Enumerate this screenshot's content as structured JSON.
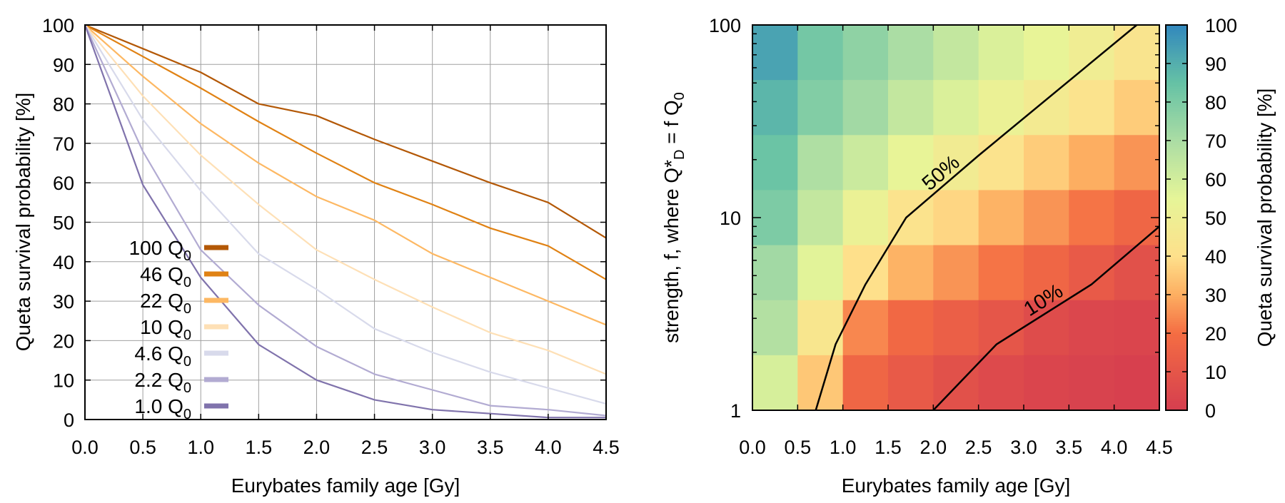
{
  "chart_data": [
    {
      "type": "line",
      "xlabel": "Eurybates family age [Gy]",
      "ylabel": "Queta survival probability [%]",
      "xlim": [
        0,
        4.5
      ],
      "ylim": [
        0,
        100
      ],
      "grid": true,
      "legend_position": "bottom-left",
      "x_ticks": [
        "0.0",
        "0.5",
        "1.0",
        "1.5",
        "2.0",
        "2.5",
        "3.0",
        "3.5",
        "4.0",
        "4.5"
      ],
      "y_ticks": [
        "0",
        "10",
        "20",
        "30",
        "40",
        "50",
        "60",
        "70",
        "80",
        "90",
        "100"
      ],
      "x": [
        0,
        0.5,
        1.0,
        1.5,
        2.0,
        2.5,
        3.0,
        3.5,
        4.0,
        4.5
      ],
      "series": [
        {
          "name": "100",
          "color": "#b35806",
          "values": [
            100,
            94,
            88,
            80,
            77,
            71,
            65.5,
            60,
            55,
            46
          ]
        },
        {
          "name": "46",
          "color": "#e08214",
          "values": [
            100,
            92,
            84,
            75.5,
            67.5,
            60,
            54.5,
            48.5,
            44,
            35.5
          ]
        },
        {
          "name": "22",
          "color": "#fdb863",
          "values": [
            100,
            87,
            75,
            65,
            56.5,
            50.5,
            42,
            36,
            30,
            24
          ]
        },
        {
          "name": "10",
          "color": "#fee0b6",
          "values": [
            100,
            82,
            67,
            54.5,
            43,
            35.5,
            28.5,
            22,
            17.5,
            11.5
          ]
        },
        {
          "name": "4.6",
          "color": "#d8daeb",
          "values": [
            100,
            76,
            58,
            42,
            33,
            23,
            17,
            12,
            8,
            4
          ]
        },
        {
          "name": "2.2",
          "color": "#b2abd2",
          "values": [
            100,
            68,
            43,
            29,
            18.5,
            11.5,
            7.5,
            3.5,
            2.5,
            1
          ]
        },
        {
          "name": "1.0",
          "color": "#8073ac",
          "values": [
            100,
            59.5,
            36,
            19,
            10,
            5,
            2.5,
            1.5,
            0.5,
            0.5
          ]
        }
      ],
      "legend_unit": "Q",
      "legend_unit_sub": "0"
    },
    {
      "type": "heatmap",
      "xlabel": "Eurybates family age [Gy]",
      "ylabel_parts": [
        "strength, f, where Q*",
        "D",
        " = f Q",
        "0"
      ],
      "x_ticks": [
        "0.0",
        "0.5",
        "1.0",
        "1.5",
        "2.0",
        "2.5",
        "3.0",
        "3.5",
        "4.0",
        "4.5"
      ],
      "xlim": [
        0,
        4.5
      ],
      "y_scale": "log",
      "ylim": [
        1,
        100
      ],
      "y_ticks": [
        "1",
        "10",
        "100"
      ],
      "colorbar_label": "Queta survival probability [%]",
      "colorbar_ticks": [
        "0",
        "10",
        "20",
        "30",
        "40",
        "50",
        "60",
        "70",
        "80",
        "90",
        "100"
      ],
      "colorbar_range": [
        0,
        100
      ],
      "colormap": [
        {
          "v": 0,
          "c": "#d53e4f"
        },
        {
          "v": 20,
          "c": "#f46d43"
        },
        {
          "v": 30,
          "c": "#fdae61"
        },
        {
          "v": 40,
          "c": "#fee08b"
        },
        {
          "v": 55,
          "c": "#e6f598"
        },
        {
          "v": 70,
          "c": "#abdda4"
        },
        {
          "v": 85,
          "c": "#66c2a5"
        },
        {
          "v": 100,
          "c": "#3288bd"
        }
      ],
      "rows_top_to_bottom": [
        [
          93,
          82,
          76,
          70,
          64,
          58,
          54,
          49,
          43
        ],
        [
          88,
          79,
          72,
          64,
          58,
          52,
          47,
          42,
          36
        ],
        [
          84,
          69,
          62,
          54,
          48,
          42,
          36,
          30,
          26
        ],
        [
          80,
          64,
          52,
          42,
          38,
          31,
          26,
          21,
          17
        ],
        [
          72,
          56,
          40,
          31,
          26,
          21,
          17,
          12,
          8
        ],
        [
          68,
          44,
          24,
          18,
          14,
          10,
          6,
          4,
          3
        ],
        [
          59,
          35,
          17,
          12,
          8,
          5,
          3,
          2,
          1
        ]
      ],
      "contours": [
        {
          "label": "50%",
          "x": [
            0.7,
            0.92,
            1.25,
            1.7,
            2.5,
            4.25
          ],
          "f": [
            1,
            2.2,
            4.5,
            10,
            21,
            100
          ]
        },
        {
          "label": "10%",
          "x": [
            2.0,
            2.7,
            3.75,
            4.5
          ],
          "f": [
            1,
            2.2,
            4.5,
            9
          ]
        }
      ]
    }
  ]
}
